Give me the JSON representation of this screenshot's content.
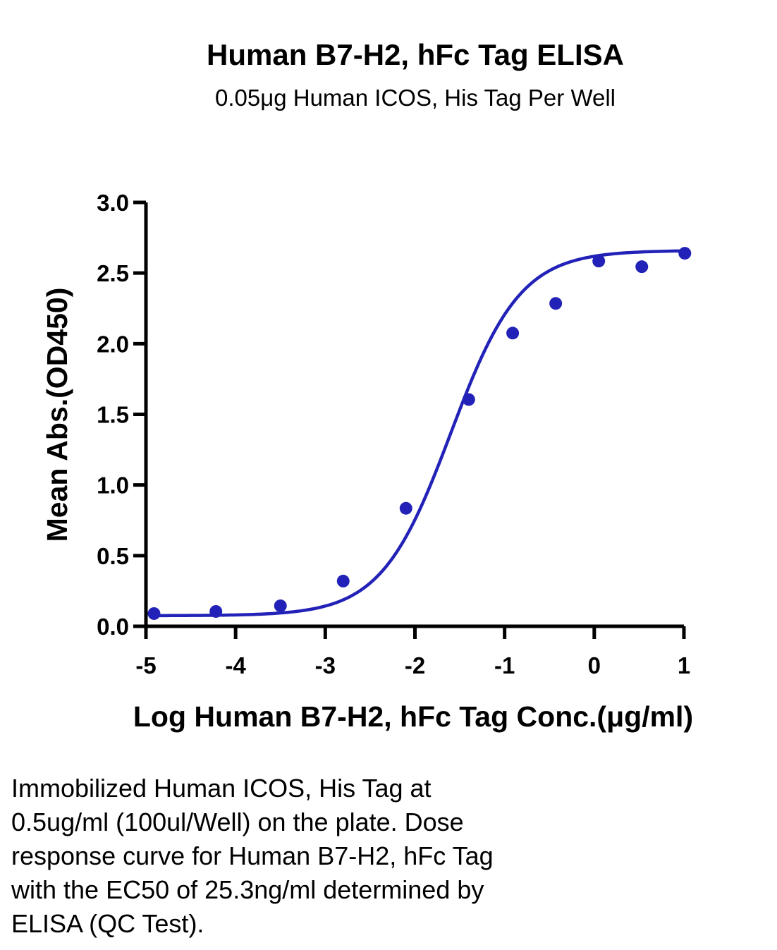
{
  "chart_data": {
    "type": "scatter",
    "title": "Human B7-H2, hFc Tag ELISA",
    "subtitle": "0.05μg Human ICOS, His Tag Per Well",
    "xlabel": "Log Human B7-H2, hFc Tag Conc.(μg/ml)",
    "ylabel": "Mean Abs.(OD450)",
    "xlim": [
      -5,
      1
    ],
    "ylim": [
      0,
      3
    ],
    "x_ticks": [
      -5,
      -4,
      -3,
      -2,
      -1,
      0,
      1
    ],
    "x_tick_labels": [
      "-5",
      "-4",
      "-3",
      "-2",
      "-1",
      "0",
      "1"
    ],
    "y_ticks": [
      0,
      0.5,
      1,
      1.5,
      2,
      2.5,
      3
    ],
    "y_tick_labels": [
      "0.0",
      "0.5",
      "1.0",
      "1.5",
      "2.0",
      "2.5",
      "3.0"
    ],
    "grid": false,
    "color": "#2222b8",
    "series": [
      {
        "x": [
          -4.91,
          -4.22,
          -3.5,
          -2.8,
          -2.1,
          -1.4,
          -0.91,
          -0.43,
          0.05,
          0.53,
          1.01
        ],
        "y": [
          0.09,
          0.105,
          0.145,
          0.32,
          0.835,
          1.605,
          2.075,
          2.285,
          2.585,
          2.545,
          2.64
        ]
      }
    ],
    "fit_curve": {
      "model": "4PL",
      "bottom": 0.075,
      "top": 2.66,
      "log_ec50": -1.6,
      "hill": 1.12
    }
  },
  "caption": "Immobilized Human ICOS, His Tag at\n0.5ug/ml (100ul/Well) on the plate. Dose\nresponse curve for Human B7-H2, hFc Tag\nwith the EC50 of 25.3ng/ml determined by\nELISA (QC Test)."
}
